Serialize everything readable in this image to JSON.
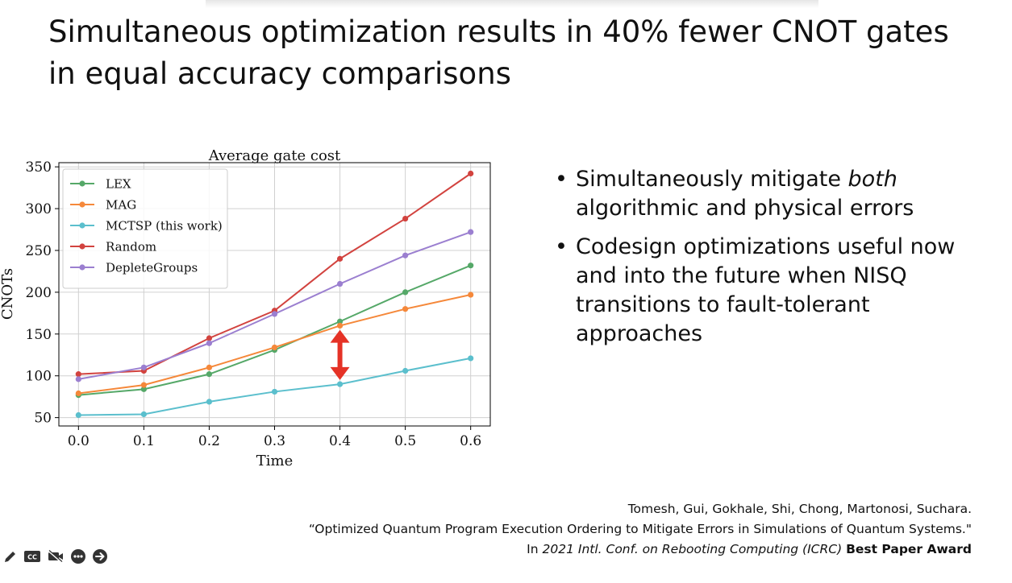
{
  "slide": {
    "title": "Simultaneous optimization results in 40% fewer CNOT gates in equal accuracy comparisons",
    "bullets": [
      {
        "pre": "Simultaneously mitigate ",
        "em": "both",
        "post": " algorithmic and physical errors"
      },
      {
        "pre": "Codesign optimizations useful now and into the future when NISQ transitions to fault-tolerant approaches",
        "em": "",
        "post": ""
      }
    ],
    "citation": {
      "authors": "Tomesh, Gui, Gokhale, Shi, Chong, Martonosi, Suchara.",
      "paper_title": "“Optimized Quantum Program Execution Ordering to Mitigate Errors in Simulations of Quantum Systems.\"",
      "venue_prefix": "In ",
      "venue": "2021 Intl. Conf. on Rebooting Computing (ICRC)",
      "award": "Best Paper Award"
    }
  },
  "toolbar": {
    "items": [
      {
        "name": "pen-icon"
      },
      {
        "name": "closed-captions-icon",
        "label": "CC"
      },
      {
        "name": "camera-off-icon"
      },
      {
        "name": "more-options-icon"
      },
      {
        "name": "next-arrow-icon"
      }
    ],
    "icon_color": "#333333"
  },
  "chart_data": {
    "type": "line",
    "title": "Average gate cost",
    "xlabel": "Time",
    "ylabel": "CNOTs",
    "x": [
      0.0,
      0.1,
      0.2,
      0.3,
      0.4,
      0.5,
      0.6
    ],
    "x_tick_labels": [
      "0.0",
      "0.1",
      "0.2",
      "0.3",
      "0.4",
      "0.5",
      "0.6"
    ],
    "y_ticks": [
      50,
      100,
      150,
      200,
      250,
      300,
      350
    ],
    "xlim": [
      -0.03,
      0.63
    ],
    "ylim": [
      40,
      355
    ],
    "grid": true,
    "legend_position": "top-left",
    "series": [
      {
        "name": "LEX",
        "color": "#55a868",
        "values": [
          77,
          84,
          102,
          131,
          165,
          200,
          232
        ]
      },
      {
        "name": "MAG",
        "color": "#f5883a",
        "values": [
          79,
          89,
          110,
          134,
          160,
          180,
          197
        ]
      },
      {
        "name": "MCTSP (this work)",
        "color": "#5bbfcd",
        "values": [
          53,
          54,
          69,
          81,
          90,
          106,
          121
        ]
      },
      {
        "name": "Random",
        "color": "#d2433f",
        "values": [
          102,
          106,
          145,
          178,
          240,
          288,
          342
        ]
      },
      {
        "name": "DepleteGroups",
        "color": "#9b7fd0",
        "values": [
          96,
          110,
          139,
          174,
          210,
          244,
          272
        ]
      }
    ],
    "annotation": {
      "type": "double-arrow",
      "x": 0.4,
      "y_from": 95,
      "y_to": 155,
      "color": "#e53226"
    }
  }
}
